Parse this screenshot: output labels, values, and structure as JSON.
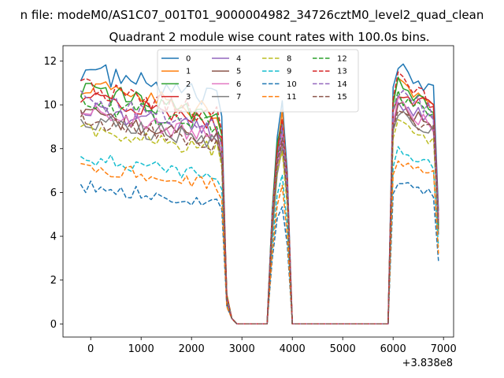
{
  "figure": {
    "suptitle": "n file: modeM0/AS1C07_001T01_9000004982_34726cztM0_level2_quad_clean",
    "title": "Quadrant 2 module wise count rates with 100.0s bins.",
    "offset_label": "+3.838e8"
  },
  "chart_data": {
    "type": "line",
    "title": "Quadrant 2 module wise count rates with 100.0s bins.",
    "xlabel": "",
    "ylabel": "",
    "xlim": [
      -550,
      7200
    ],
    "ylim": [
      -0.6,
      12.7
    ],
    "x_offset": 383800000,
    "xticks": [
      0,
      1000,
      2000,
      3000,
      4000,
      5000,
      6000,
      7000
    ],
    "yticks": [
      0,
      2,
      4,
      6,
      8,
      10,
      12
    ],
    "legend": {
      "location": "upper-center",
      "columns": 4
    },
    "x_segments": [
      [
        -200,
        2600
      ],
      [
        2700,
        4000
      ],
      [
        4000,
        6900
      ]
    ],
    "series": [
      {
        "name": "0",
        "color": "#1f77b4",
        "style": "solid",
        "base": 11.6
      },
      {
        "name": "1",
        "color": "#ff7f0e",
        "style": "solid",
        "base": 10.9
      },
      {
        "name": "2",
        "color": "#2ca02c",
        "style": "solid",
        "base": 10.7
      },
      {
        "name": "3",
        "color": "#d62728",
        "style": "solid",
        "base": 10.4
      },
      {
        "name": "4",
        "color": "#9467bd",
        "style": "solid",
        "base": 9.9
      },
      {
        "name": "5",
        "color": "#8c564b",
        "style": "solid",
        "base": 9.6
      },
      {
        "name": "6",
        "color": "#e377c2",
        "style": "solid",
        "base": 9.7
      },
      {
        "name": "7",
        "color": "#7f7f7f",
        "style": "solid",
        "base": 9.4
      },
      {
        "name": "8",
        "color": "#bcbd22",
        "style": "dashed",
        "base": 9.0
      },
      {
        "name": "9",
        "color": "#17becf",
        "style": "dashed",
        "base": 7.6
      },
      {
        "name": "10",
        "color": "#1f77b4",
        "style": "dashed",
        "base": 6.3
      },
      {
        "name": "11",
        "color": "#ff7f0e",
        "style": "dashed",
        "base": 7.2
      },
      {
        "name": "12",
        "color": "#2ca02c",
        "style": "dashed",
        "base": 10.2
      },
      {
        "name": "13",
        "color": "#d62728",
        "style": "dashed",
        "base": 10.8
      },
      {
        "name": "14",
        "color": "#9467bd",
        "style": "dashed",
        "base": 10.3
      },
      {
        "name": "15",
        "color": "#8c564b",
        "style": "dashed",
        "base": 9.4
      }
    ],
    "drop_x": [
      2600,
      2700,
      2800
    ],
    "zero_range": [
      2900,
      3500
    ],
    "peak": {
      "x": 3800,
      "ramp_start": 3500,
      "ramp_end": 3950
    }
  }
}
